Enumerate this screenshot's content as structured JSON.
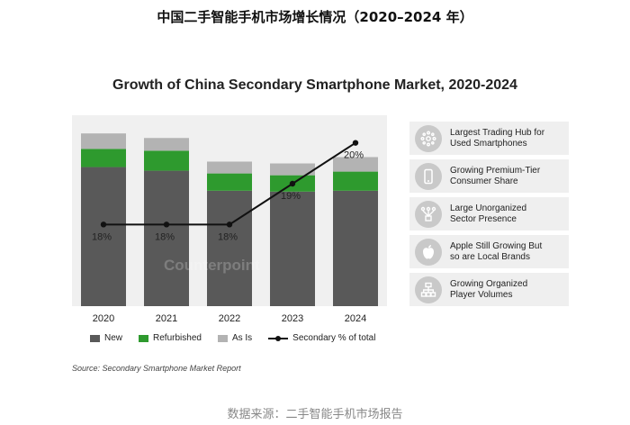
{
  "page_title": "中国二手智能手机市场增长情况（2020–2024 年）",
  "footer": "数据来源：二手智能手机市场报告",
  "source_note": "Source: Secondary Smartphone Market Report",
  "watermark": "Counterpoint",
  "colors": {
    "new": "#595959",
    "refurbished": "#2e9a2e",
    "as_is": "#b3b3b3",
    "line": "#111111"
  },
  "chart_data": {
    "type": "bar",
    "stacked": true,
    "title": "Growth of China Secondary Smartphone Market, 2020-2024",
    "categories": [
      "2020",
      "2021",
      "2022",
      "2023",
      "2024"
    ],
    "series": [
      {
        "name": "New",
        "values": [
          153,
          149,
          127,
          126,
          127
        ]
      },
      {
        "name": "Refurbished",
        "values": [
          20,
          22,
          19,
          18,
          21
        ]
      },
      {
        "name": "As Is",
        "values": [
          17,
          14,
          13,
          13,
          16
        ]
      }
    ],
    "line_series": {
      "name": "Secondary % of total",
      "values": [
        18,
        18,
        18,
        19,
        20
      ],
      "labels": [
        "18%",
        "18%",
        "18%",
        "19%",
        "20%"
      ],
      "ylim": [
        16,
        20.5
      ]
    },
    "ylim": [
      0,
      210
    ],
    "xlabel": "",
    "ylabel": "",
    "legend": [
      {
        "label": "New",
        "kind": "bar",
        "series": "new"
      },
      {
        "label": "Refurbished",
        "kind": "bar",
        "series": "refurbished"
      },
      {
        "label": "As Is",
        "kind": "bar",
        "series": "as_is"
      },
      {
        "label": "Secondary % of total",
        "kind": "line",
        "series": "line"
      }
    ]
  },
  "highlights": [
    {
      "text": "Largest Trading Hub for\nUsed Smartphones",
      "icon": "hub-icon"
    },
    {
      "text": "Growing Premium-Tier\nConsumer Share",
      "icon": "phone-icon"
    },
    {
      "text": "Large Unorganized\nSector Presence",
      "icon": "network-icon"
    },
    {
      "text": "Apple Still Growing But\nso are Local Brands",
      "icon": "apple-icon"
    },
    {
      "text": "Growing Organized\nPlayer Volumes",
      "icon": "organization-icon"
    }
  ]
}
